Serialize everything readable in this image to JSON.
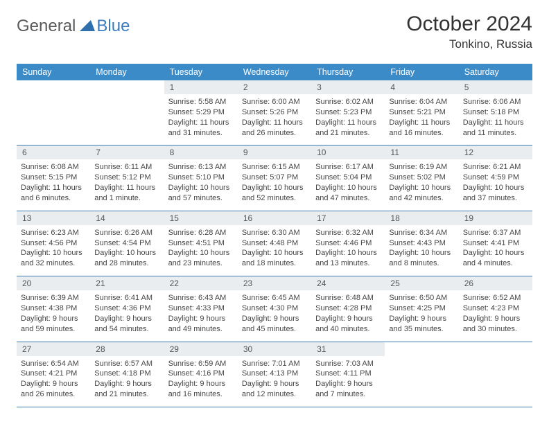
{
  "logo": {
    "part1": "General",
    "part2": "Blue"
  },
  "title": "October 2024",
  "location": "Tonkino, Russia",
  "colors": {
    "header_bg": "#3b8bc9",
    "header_text": "#ffffff",
    "daynum_bg": "#e9edef",
    "week_border": "#3b7bb0",
    "logo_accent": "#3b7bbf",
    "logo_gray": "#5a5a5a",
    "body_text": "#454545"
  },
  "days_of_week": [
    "Sunday",
    "Monday",
    "Tuesday",
    "Wednesday",
    "Thursday",
    "Friday",
    "Saturday"
  ],
  "weeks": [
    [
      null,
      null,
      {
        "n": "1",
        "sr": "Sunrise: 5:58 AM",
        "ss": "Sunset: 5:29 PM",
        "d1": "Daylight: 11 hours",
        "d2": "and 31 minutes."
      },
      {
        "n": "2",
        "sr": "Sunrise: 6:00 AM",
        "ss": "Sunset: 5:26 PM",
        "d1": "Daylight: 11 hours",
        "d2": "and 26 minutes."
      },
      {
        "n": "3",
        "sr": "Sunrise: 6:02 AM",
        "ss": "Sunset: 5:23 PM",
        "d1": "Daylight: 11 hours",
        "d2": "and 21 minutes."
      },
      {
        "n": "4",
        "sr": "Sunrise: 6:04 AM",
        "ss": "Sunset: 5:21 PM",
        "d1": "Daylight: 11 hours",
        "d2": "and 16 minutes."
      },
      {
        "n": "5",
        "sr": "Sunrise: 6:06 AM",
        "ss": "Sunset: 5:18 PM",
        "d1": "Daylight: 11 hours",
        "d2": "and 11 minutes."
      }
    ],
    [
      {
        "n": "6",
        "sr": "Sunrise: 6:08 AM",
        "ss": "Sunset: 5:15 PM",
        "d1": "Daylight: 11 hours",
        "d2": "and 6 minutes."
      },
      {
        "n": "7",
        "sr": "Sunrise: 6:11 AM",
        "ss": "Sunset: 5:12 PM",
        "d1": "Daylight: 11 hours",
        "d2": "and 1 minute."
      },
      {
        "n": "8",
        "sr": "Sunrise: 6:13 AM",
        "ss": "Sunset: 5:10 PM",
        "d1": "Daylight: 10 hours",
        "d2": "and 57 minutes."
      },
      {
        "n": "9",
        "sr": "Sunrise: 6:15 AM",
        "ss": "Sunset: 5:07 PM",
        "d1": "Daylight: 10 hours",
        "d2": "and 52 minutes."
      },
      {
        "n": "10",
        "sr": "Sunrise: 6:17 AM",
        "ss": "Sunset: 5:04 PM",
        "d1": "Daylight: 10 hours",
        "d2": "and 47 minutes."
      },
      {
        "n": "11",
        "sr": "Sunrise: 6:19 AM",
        "ss": "Sunset: 5:02 PM",
        "d1": "Daylight: 10 hours",
        "d2": "and 42 minutes."
      },
      {
        "n": "12",
        "sr": "Sunrise: 6:21 AM",
        "ss": "Sunset: 4:59 PM",
        "d1": "Daylight: 10 hours",
        "d2": "and 37 minutes."
      }
    ],
    [
      {
        "n": "13",
        "sr": "Sunrise: 6:23 AM",
        "ss": "Sunset: 4:56 PM",
        "d1": "Daylight: 10 hours",
        "d2": "and 32 minutes."
      },
      {
        "n": "14",
        "sr": "Sunrise: 6:26 AM",
        "ss": "Sunset: 4:54 PM",
        "d1": "Daylight: 10 hours",
        "d2": "and 28 minutes."
      },
      {
        "n": "15",
        "sr": "Sunrise: 6:28 AM",
        "ss": "Sunset: 4:51 PM",
        "d1": "Daylight: 10 hours",
        "d2": "and 23 minutes."
      },
      {
        "n": "16",
        "sr": "Sunrise: 6:30 AM",
        "ss": "Sunset: 4:48 PM",
        "d1": "Daylight: 10 hours",
        "d2": "and 18 minutes."
      },
      {
        "n": "17",
        "sr": "Sunrise: 6:32 AM",
        "ss": "Sunset: 4:46 PM",
        "d1": "Daylight: 10 hours",
        "d2": "and 13 minutes."
      },
      {
        "n": "18",
        "sr": "Sunrise: 6:34 AM",
        "ss": "Sunset: 4:43 PM",
        "d1": "Daylight: 10 hours",
        "d2": "and 8 minutes."
      },
      {
        "n": "19",
        "sr": "Sunrise: 6:37 AM",
        "ss": "Sunset: 4:41 PM",
        "d1": "Daylight: 10 hours",
        "d2": "and 4 minutes."
      }
    ],
    [
      {
        "n": "20",
        "sr": "Sunrise: 6:39 AM",
        "ss": "Sunset: 4:38 PM",
        "d1": "Daylight: 9 hours",
        "d2": "and 59 minutes."
      },
      {
        "n": "21",
        "sr": "Sunrise: 6:41 AM",
        "ss": "Sunset: 4:36 PM",
        "d1": "Daylight: 9 hours",
        "d2": "and 54 minutes."
      },
      {
        "n": "22",
        "sr": "Sunrise: 6:43 AM",
        "ss": "Sunset: 4:33 PM",
        "d1": "Daylight: 9 hours",
        "d2": "and 49 minutes."
      },
      {
        "n": "23",
        "sr": "Sunrise: 6:45 AM",
        "ss": "Sunset: 4:30 PM",
        "d1": "Daylight: 9 hours",
        "d2": "and 45 minutes."
      },
      {
        "n": "24",
        "sr": "Sunrise: 6:48 AM",
        "ss": "Sunset: 4:28 PM",
        "d1": "Daylight: 9 hours",
        "d2": "and 40 minutes."
      },
      {
        "n": "25",
        "sr": "Sunrise: 6:50 AM",
        "ss": "Sunset: 4:25 PM",
        "d1": "Daylight: 9 hours",
        "d2": "and 35 minutes."
      },
      {
        "n": "26",
        "sr": "Sunrise: 6:52 AM",
        "ss": "Sunset: 4:23 PM",
        "d1": "Daylight: 9 hours",
        "d2": "and 30 minutes."
      }
    ],
    [
      {
        "n": "27",
        "sr": "Sunrise: 6:54 AM",
        "ss": "Sunset: 4:21 PM",
        "d1": "Daylight: 9 hours",
        "d2": "and 26 minutes."
      },
      {
        "n": "28",
        "sr": "Sunrise: 6:57 AM",
        "ss": "Sunset: 4:18 PM",
        "d1": "Daylight: 9 hours",
        "d2": "and 21 minutes."
      },
      {
        "n": "29",
        "sr": "Sunrise: 6:59 AM",
        "ss": "Sunset: 4:16 PM",
        "d1": "Daylight: 9 hours",
        "d2": "and 16 minutes."
      },
      {
        "n": "30",
        "sr": "Sunrise: 7:01 AM",
        "ss": "Sunset: 4:13 PM",
        "d1": "Daylight: 9 hours",
        "d2": "and 12 minutes."
      },
      {
        "n": "31",
        "sr": "Sunrise: 7:03 AM",
        "ss": "Sunset: 4:11 PM",
        "d1": "Daylight: 9 hours",
        "d2": "and 7 minutes."
      },
      null,
      null
    ]
  ]
}
